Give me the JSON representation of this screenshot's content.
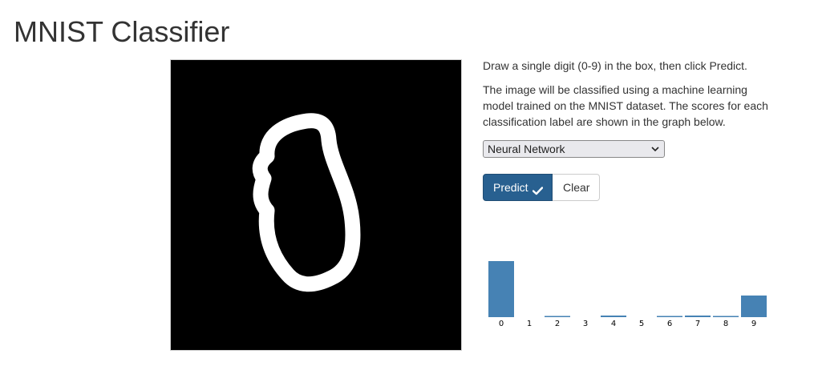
{
  "title": "MNIST Classifier",
  "instructions": {
    "line1": "Draw a single digit (0-9) in the box, then click Predict.",
    "line2": "The image will be classified using a machine learning model trained on the MNIST dataset. The scores for each classification label are shown in the graph below."
  },
  "model_select": {
    "selected": "Neural Network",
    "icon": "chevron-down-icon"
  },
  "buttons": {
    "predict_label": "Predict",
    "predict_icon": "check-icon",
    "clear_label": "Clear"
  },
  "colors": {
    "primary": "#286090",
    "bar": "#4682b4",
    "canvas_bg": "#000000",
    "stroke": "#ffffff"
  },
  "chart_data": {
    "type": "bar",
    "categories": [
      "0",
      "1",
      "2",
      "3",
      "4",
      "5",
      "6",
      "7",
      "8",
      "9"
    ],
    "values": [
      0.7,
      0.0,
      0.01,
      0.0,
      0.02,
      0.0,
      0.015,
      0.02,
      0.015,
      0.27
    ],
    "title": "",
    "xlabel": "",
    "ylabel": "",
    "ylim": [
      0,
      0.95
    ],
    "grid": false
  }
}
